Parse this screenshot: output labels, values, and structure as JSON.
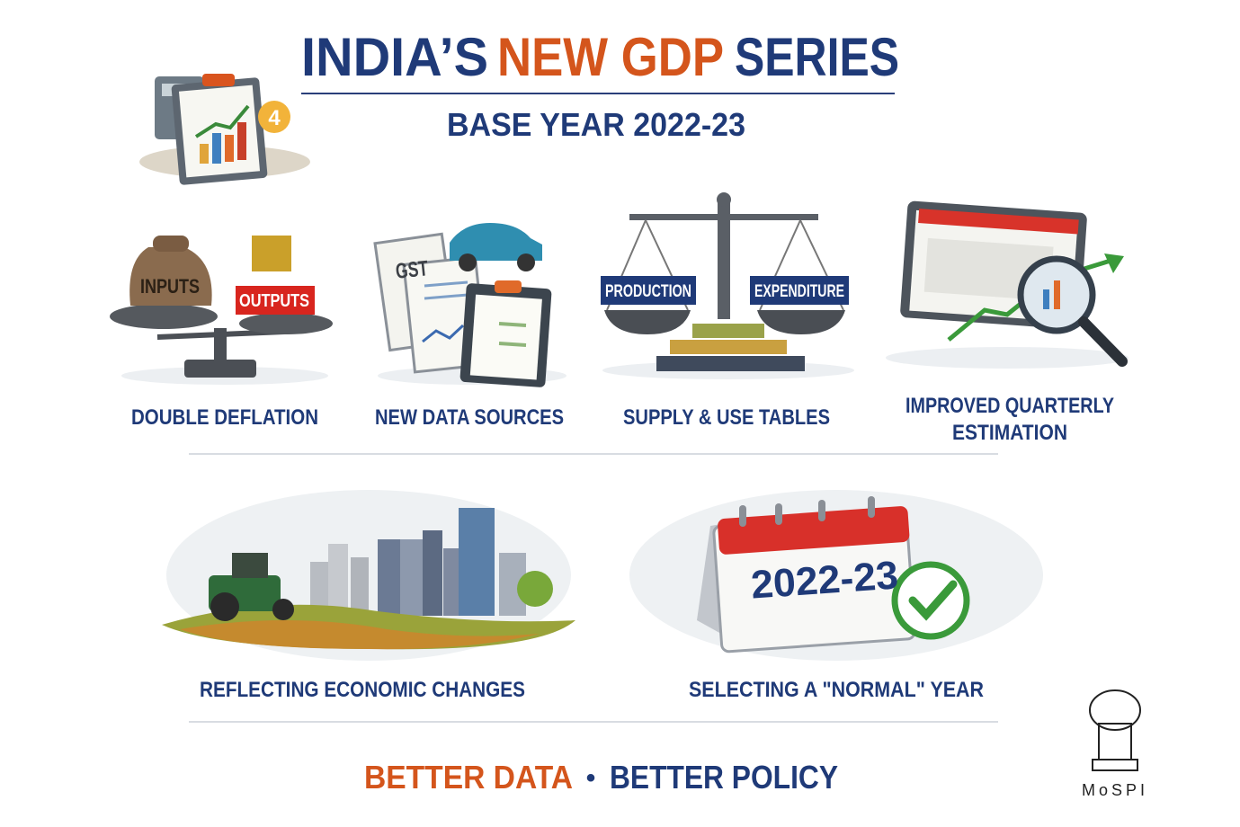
{
  "header": {
    "title": {
      "part1": "INDIA’S",
      "part2": "NEW GDP",
      "part3": "SERIES"
    },
    "subtitle": "BASE YEAR 2022-23",
    "badge": "4"
  },
  "features": [
    {
      "lines": [
        "DOUBLE DEFLATION"
      ],
      "icon_texts": [
        "INPUTS",
        "OUTPUTS"
      ]
    },
    {
      "lines": [
        "NEW DATA SOURCES"
      ],
      "icon_texts": [
        "GST"
      ]
    },
    {
      "lines": [
        "SUPPLY & USE TABLES"
      ],
      "icon_texts": [
        "PRODUCTION",
        "EXPENDITURE"
      ]
    },
    {
      "lines": [
        "IMPROVED QUARTERLY",
        "ESTIMATION"
      ]
    }
  ],
  "changes": [
    {
      "lines": [
        "REFLECTING ECONOMIC CHANGES"
      ]
    },
    {
      "lines": [
        "SELECTING A \"NORMAL\" YEAR"
      ],
      "icon_texts": [
        "2022-23"
      ]
    }
  ],
  "footer": {
    "left": "BETTER DATA",
    "separator": "•",
    "right": "BETTER POLICY"
  },
  "logo": {
    "text": "MoSPI"
  }
}
